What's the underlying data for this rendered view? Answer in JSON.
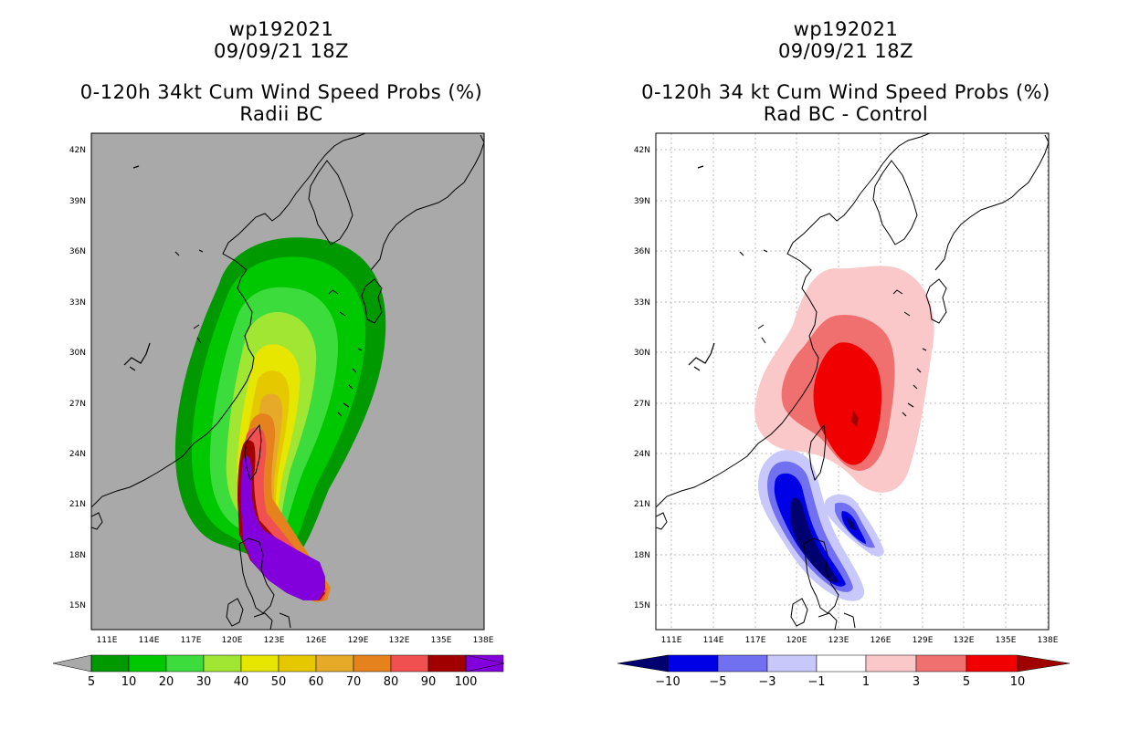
{
  "panels": [
    {
      "storm_id": "wp192021",
      "datetime": "09/09/21 18Z",
      "title": "0-120h 34kt Cum Wind Speed Probs (%)",
      "subtitle": "Radii BC",
      "background_color": "#a9a9a9",
      "lat_labels": [
        "42N",
        "39N",
        "36N",
        "33N",
        "30N",
        "27N",
        "24N",
        "21N",
        "18N",
        "15N"
      ],
      "lon_labels": [
        "111E",
        "114E",
        "117E",
        "120E",
        "123E",
        "126E",
        "129E",
        "132E",
        "135E",
        "138E"
      ],
      "colorbar": {
        "labels": [
          "5",
          "10",
          "20",
          "30",
          "40",
          "50",
          "60",
          "70",
          "80",
          "90",
          "100"
        ],
        "colors": [
          "#009a00",
          "#00c800",
          "#3cdc3c",
          "#a0e632",
          "#e6e600",
          "#e6c800",
          "#e6aa28",
          "#e6821e",
          "#f05050",
          "#a00000",
          "#8200dc"
        ],
        "end_color": "#a9a9a9"
      }
    },
    {
      "storm_id": "wp192021",
      "datetime": "09/09/21 18Z",
      "title": "0-120h 34 kt Cum Wind Speed Probs (%)",
      "subtitle": "Rad BC - Control",
      "background_color": "#ffffff",
      "lat_labels": [
        "42N",
        "39N",
        "36N",
        "33N",
        "30N",
        "27N",
        "24N",
        "21N",
        "18N",
        "15N"
      ],
      "lon_labels": [
        "111E",
        "114E",
        "117E",
        "120E",
        "123E",
        "126E",
        "129E",
        "132E",
        "135E",
        "138E"
      ],
      "colorbar": {
        "labels": [
          "−10",
          "−5",
          "−3",
          "−1",
          "1",
          "3",
          "5",
          "10"
        ],
        "colors": [
          "#1e00c8",
          "#0000e6",
          "#7070f0",
          "#c8c8fa",
          "#ffffff",
          "#fac8c8",
          "#f07070",
          "#f00000",
          "#a00000"
        ],
        "left_color": "#000070",
        "right_color": "#a00000"
      }
    }
  ]
}
